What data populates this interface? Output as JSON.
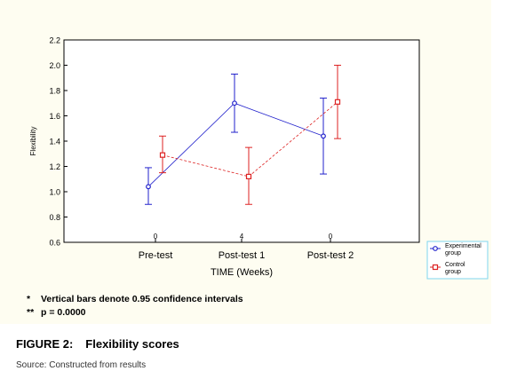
{
  "chart_data": {
    "type": "line",
    "categories": [
      "Pre-test",
      "Post-test 1",
      "Post-test 2"
    ],
    "category_numbers": [
      "0",
      "4",
      "0"
    ],
    "xlabel": "TIME (Weeks)",
    "ylabel": "Flexibility",
    "ylim": [
      0.6,
      2.2
    ],
    "yticks": [
      "0.6",
      "0.8",
      "1.0",
      "1.2",
      "1.4",
      "1.6",
      "1.8",
      "2.0",
      "2.2"
    ],
    "grid": false,
    "legend_position": "bottom-right",
    "series": [
      {
        "name": "Experimental group",
        "color": "#2222cc",
        "marker": "circle",
        "values": [
          1.04,
          1.7,
          1.44
        ],
        "ci_low": [
          0.9,
          1.47,
          1.14
        ],
        "ci_high": [
          1.19,
          1.93,
          1.74
        ]
      },
      {
        "name": "Control group",
        "color": "#dd2222",
        "marker": "square",
        "values": [
          1.29,
          1.12,
          1.71
        ],
        "ci_low": [
          1.15,
          0.9,
          1.42
        ],
        "ci_high": [
          1.44,
          1.35,
          2.0
        ]
      }
    ]
  },
  "notes": [
    {
      "symbol": "*",
      "text": "Vertical bars denote 0.95 confidence intervals"
    },
    {
      "symbol": "**",
      "text": "p = 0.0000"
    }
  ],
  "caption": {
    "label": "FIGURE 2:",
    "text": "Flexibility scores"
  },
  "source": "Source: Constructed from results"
}
